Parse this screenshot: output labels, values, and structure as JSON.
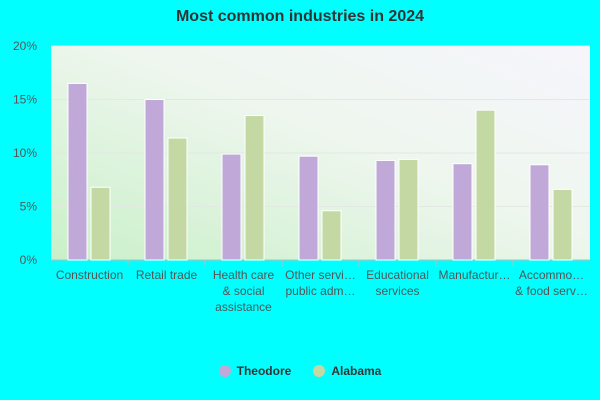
{
  "chart_data": {
    "type": "bar",
    "title": "Most common industries in 2024",
    "categories": [
      [
        "Construction"
      ],
      [
        "Retail trade"
      ],
      [
        "Health care",
        "& social",
        "assistance"
      ],
      [
        "Other servi…",
        "public adm…"
      ],
      [
        "Educational",
        "services"
      ],
      [
        "Manufactur…"
      ],
      [
        "Accommo…",
        "& food serv…"
      ]
    ],
    "series": [
      {
        "name": "Theodore",
        "color": "#C0A8D8",
        "values": [
          16.5,
          15.0,
          9.9,
          9.7,
          9.3,
          9.0,
          8.9
        ]
      },
      {
        "name": "Alabama",
        "color": "#C4D8A4",
        "values": [
          6.8,
          11.4,
          13.5,
          4.6,
          9.4,
          14.0,
          6.6
        ]
      }
    ],
    "ylim": [
      0,
      20
    ],
    "yticks": [
      "0%",
      "5%",
      "10%",
      "15%",
      "20%"
    ],
    "ytick_values": [
      0,
      5,
      10,
      15,
      20
    ],
    "grid": true,
    "legend_position": "bottom"
  }
}
